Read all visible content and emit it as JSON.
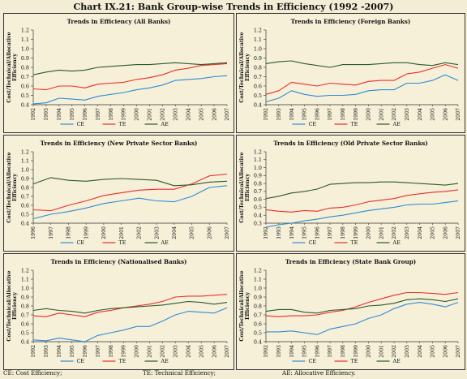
{
  "title": "Chart IX.21: Bank Group-wise Trends in Efficiency (1992 -2007)",
  "colors": {
    "CE": "#2e8bd6",
    "TE": "#ee2c2c",
    "AE": "#2a5a2a"
  },
  "footnotes": [
    "CE: Cost Efficiency;",
    "TE: Technical Efficiency;",
    "AE: Allocative Efficiency."
  ],
  "chart_data": [
    {
      "type": "line",
      "title": "Trends in Efficiency (All Banks)",
      "ylabel": "Cost/Technical/Allocative Efficiency",
      "ylim": [
        0.4,
        1.2
      ],
      "yticks": [
        0.4,
        0.5,
        0.6,
        0.7,
        0.8,
        0.9,
        1.0,
        1.1,
        1.2
      ],
      "x": [
        "1992",
        "1993",
        "1994",
        "1995",
        "1996",
        "1997",
        "1998",
        "1999",
        "2000",
        "2001",
        "2002",
        "2003",
        "2004",
        "2005",
        "2006",
        "2007"
      ],
      "series": [
        {
          "name": "CE",
          "values": [
            0.41,
            0.42,
            0.47,
            0.46,
            0.45,
            0.49,
            0.51,
            0.53,
            0.56,
            0.58,
            0.61,
            0.66,
            0.67,
            0.68,
            0.7,
            0.71
          ]
        },
        {
          "name": "TE",
          "values": [
            0.57,
            0.56,
            0.6,
            0.6,
            0.58,
            0.62,
            0.63,
            0.64,
            0.67,
            0.69,
            0.72,
            0.77,
            0.79,
            0.82,
            0.83,
            0.84
          ]
        },
        {
          "name": "AE",
          "values": [
            0.72,
            0.75,
            0.77,
            0.76,
            0.77,
            0.8,
            0.81,
            0.82,
            0.83,
            0.83,
            0.84,
            0.85,
            0.84,
            0.83,
            0.84,
            0.85
          ]
        }
      ]
    },
    {
      "type": "line",
      "title": "Trends in Efficiency (Foreign Banks)",
      "ylabel": "Cost/Technical/Allocative Efficiency",
      "ylim": [
        0.4,
        1.2
      ],
      "yticks": [
        0.4,
        0.5,
        0.6,
        0.7,
        0.8,
        0.9,
        1.0,
        1.1,
        1.2
      ],
      "x": [
        "1992",
        "1993",
        "1994",
        "1995",
        "1996",
        "1997",
        "1998",
        "1999",
        "2000",
        "2001",
        "2002",
        "2003",
        "2004",
        "2005",
        "2006",
        "2007"
      ],
      "series": [
        {
          "name": "CE",
          "values": [
            0.43,
            0.47,
            0.55,
            0.51,
            0.49,
            0.5,
            0.5,
            0.51,
            0.55,
            0.56,
            0.56,
            0.63,
            0.63,
            0.66,
            0.72,
            0.66
          ]
        },
        {
          "name": "TE",
          "values": [
            0.51,
            0.55,
            0.64,
            0.62,
            0.6,
            0.63,
            0.62,
            0.61,
            0.65,
            0.66,
            0.66,
            0.73,
            0.75,
            0.79,
            0.83,
            0.79
          ]
        },
        {
          "name": "AE",
          "values": [
            0.84,
            0.86,
            0.87,
            0.84,
            0.82,
            0.8,
            0.83,
            0.83,
            0.83,
            0.84,
            0.85,
            0.85,
            0.83,
            0.82,
            0.85,
            0.83
          ]
        }
      ]
    },
    {
      "type": "line",
      "title": "Trends in Efficiency (New Private Sector Banks)",
      "ylabel": "Cost/Technical/Allocative Efficiency",
      "ylim": [
        0.4,
        1.2
      ],
      "yticks": [
        0.4,
        0.5,
        0.6,
        0.7,
        0.8,
        0.9,
        1.0,
        1.1,
        1.2
      ],
      "x": [
        "1996",
        "1997",
        "1998",
        "1999",
        "2000",
        "2001",
        "2002",
        "2003",
        "2004",
        "2005",
        "2006",
        "2007"
      ],
      "series": [
        {
          "name": "CE",
          "values": [
            0.45,
            0.5,
            0.53,
            0.57,
            0.62,
            0.65,
            0.68,
            0.65,
            0.64,
            0.7,
            0.8,
            0.82
          ]
        },
        {
          "name": "TE",
          "values": [
            0.55,
            0.54,
            0.6,
            0.65,
            0.71,
            0.74,
            0.77,
            0.78,
            0.78,
            0.84,
            0.93,
            0.95
          ]
        },
        {
          "name": "AE",
          "values": [
            0.84,
            0.91,
            0.88,
            0.87,
            0.89,
            0.9,
            0.89,
            0.88,
            0.82,
            0.83,
            0.86,
            0.87
          ]
        }
      ]
    },
    {
      "type": "line",
      "title": "Trends in Efficiency (Old Private Sector Banks)",
      "ylabel": "Cost/Technical/Allocative Efficiency",
      "ylim": [
        0.3,
        1.2
      ],
      "yticks": [
        0.3,
        0.4,
        0.5,
        0.6,
        0.7,
        0.8,
        0.9,
        1.0,
        1.1,
        1.2
      ],
      "x": [
        "1992",
        "1993",
        "1994",
        "1995",
        "1996",
        "1997",
        "1998",
        "1999",
        "2000",
        "2001",
        "2002",
        "2003",
        "2004",
        "2005",
        "2006",
        "2007"
      ],
      "series": [
        {
          "name": "CE",
          "values": [
            0.25,
            0.28,
            0.3,
            0.33,
            0.35,
            0.38,
            0.4,
            0.43,
            0.46,
            0.48,
            0.5,
            0.53,
            0.54,
            0.54,
            0.56,
            0.58
          ]
        },
        {
          "name": "TE",
          "values": [
            0.47,
            0.45,
            0.44,
            0.46,
            0.45,
            0.49,
            0.5,
            0.53,
            0.57,
            0.59,
            0.61,
            0.65,
            0.67,
            0.69,
            0.7,
            0.72
          ]
        },
        {
          "name": "AE",
          "values": [
            0.61,
            0.64,
            0.68,
            0.7,
            0.73,
            0.79,
            0.8,
            0.81,
            0.81,
            0.82,
            0.82,
            0.81,
            0.8,
            0.79,
            0.78,
            0.8
          ]
        }
      ]
    },
    {
      "type": "line",
      "title": "Trends in Efficiency (Nationalised Banks)",
      "ylabel": "Cost/Technical/Allocative Efficiency",
      "ylim": [
        0.4,
        1.2
      ],
      "yticks": [
        0.4,
        0.5,
        0.6,
        0.7,
        0.8,
        0.9,
        1.0,
        1.1,
        1.2
      ],
      "x": [
        "1992",
        "1993",
        "1994",
        "1995",
        "1996",
        "1997",
        "1998",
        "1999",
        "2000",
        "2001",
        "2002",
        "2003",
        "2004",
        "2005",
        "2006",
        "2007"
      ],
      "series": [
        {
          "name": "CE",
          "values": [
            0.42,
            0.41,
            0.44,
            0.42,
            0.4,
            0.47,
            0.5,
            0.53,
            0.57,
            0.57,
            0.63,
            0.7,
            0.74,
            0.73,
            0.72,
            0.78
          ]
        },
        {
          "name": "TE",
          "values": [
            0.69,
            0.68,
            0.72,
            0.7,
            0.68,
            0.73,
            0.75,
            0.78,
            0.8,
            0.82,
            0.85,
            0.9,
            0.91,
            0.91,
            0.92,
            0.93
          ]
        },
        {
          "name": "AE",
          "values": [
            0.75,
            0.77,
            0.75,
            0.74,
            0.72,
            0.75,
            0.77,
            0.78,
            0.79,
            0.8,
            0.81,
            0.83,
            0.85,
            0.84,
            0.82,
            0.84
          ]
        }
      ]
    },
    {
      "type": "line",
      "title": "Trends in Efficiency (State Bank Group)",
      "ylabel": "Cost/Technical/Allocative Efficiency",
      "ylim": [
        0.4,
        1.2
      ],
      "yticks": [
        0.4,
        0.5,
        0.6,
        0.7,
        0.8,
        0.9,
        1.0,
        1.1,
        1.2
      ],
      "x": [
        "1992",
        "1993",
        "1994",
        "1995",
        "1996",
        "1997",
        "1998",
        "1999",
        "2000",
        "2001",
        "2002",
        "2003",
        "2004",
        "2005",
        "2006",
        "2007"
      ],
      "series": [
        {
          "name": "CE",
          "values": [
            0.51,
            0.51,
            0.52,
            0.5,
            0.48,
            0.54,
            0.57,
            0.6,
            0.66,
            0.7,
            0.77,
            0.82,
            0.84,
            0.82,
            0.79,
            0.84
          ]
        },
        {
          "name": "TE",
          "values": [
            0.69,
            0.68,
            0.69,
            0.69,
            0.7,
            0.73,
            0.75,
            0.79,
            0.84,
            0.88,
            0.92,
            0.95,
            0.95,
            0.94,
            0.93,
            0.95
          ]
        },
        {
          "name": "AE",
          "values": [
            0.74,
            0.76,
            0.76,
            0.73,
            0.72,
            0.75,
            0.76,
            0.77,
            0.8,
            0.81,
            0.83,
            0.87,
            0.88,
            0.87,
            0.85,
            0.88
          ]
        }
      ]
    }
  ]
}
